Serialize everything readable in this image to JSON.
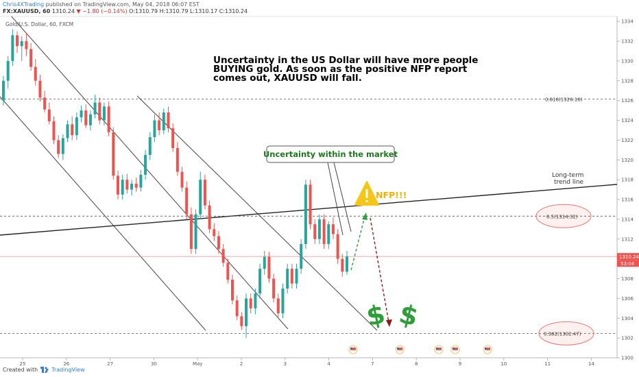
{
  "header": {
    "author": "Chris4XTrading",
    "published": "published on TradingView.com, May 04, 2018 06:07 EST",
    "symbol": "FX:XAUUSD, 60",
    "last": "1310.24",
    "change": "▼ −1.80 (−0.14%)",
    "ohlc": "O:1310.79 H:1310.79 L:1310.17 C:1310.24"
  },
  "footer": {
    "created_with": "Created with",
    "brand": "TradingView"
  },
  "chart_data": {
    "type": "candlestick",
    "title": "Gold/U.S. Dollar, 60, FXCM",
    "ylim": [
      1300,
      1334.5
    ],
    "yticks": [
      1300,
      1302,
      1304,
      1306,
      1308,
      1310,
      1312,
      1314,
      1316,
      1318,
      1320,
      1322,
      1324,
      1326,
      1328,
      1330,
      1332,
      1334
    ],
    "xticks": [
      "25",
      "26",
      "27",
      "30",
      "May",
      "2",
      "3",
      "4",
      "7",
      "8",
      "9",
      "10",
      "11",
      "14"
    ],
    "price_label": "1310.24",
    "countdown_label": "53:04",
    "levels": [
      {
        "label": "0.618(1326.16)",
        "price": 1326.16
      },
      {
        "label": "0.5(1314.32)",
        "price": 1314.32
      },
      {
        "label": "0.382(1302.47)",
        "price": 1302.47
      }
    ],
    "annotations": {
      "main_text": [
        "Uncertainty in the US Dollar will have more people",
        "BUYING gold. As soon as the positive NFP report",
        "comes out, XAUUSD will fall."
      ],
      "callout": "Uncertainty within the market",
      "nfp": "NFP!!!",
      "trend_label": [
        "Long-term",
        "trend line"
      ],
      "dollar_sign": "$"
    },
    "candles": [
      {
        "o": 1326.0,
        "h": 1328.5,
        "l": 1325.5,
        "c": 1328.0
      },
      {
        "o": 1328.0,
        "h": 1330.5,
        "l": 1327.2,
        "c": 1330.0
      },
      {
        "o": 1330.0,
        "h": 1333.2,
        "l": 1329.5,
        "c": 1332.6
      },
      {
        "o": 1332.6,
        "h": 1333.0,
        "l": 1330.8,
        "c": 1331.5
      },
      {
        "o": 1331.5,
        "h": 1332.5,
        "l": 1330.0,
        "c": 1332.0
      },
      {
        "o": 1332.0,
        "h": 1332.8,
        "l": 1330.5,
        "c": 1331.2
      },
      {
        "o": 1331.2,
        "h": 1331.8,
        "l": 1329.0,
        "c": 1329.4
      },
      {
        "o": 1329.4,
        "h": 1330.2,
        "l": 1327.5,
        "c": 1328.0
      },
      {
        "o": 1328.0,
        "h": 1328.6,
        "l": 1325.9,
        "c": 1326.3
      },
      {
        "o": 1326.3,
        "h": 1327.0,
        "l": 1324.8,
        "c": 1325.1
      },
      {
        "o": 1325.1,
        "h": 1325.8,
        "l": 1323.6,
        "c": 1323.9
      },
      {
        "o": 1323.9,
        "h": 1324.4,
        "l": 1321.6,
        "c": 1322.0
      },
      {
        "o": 1322.0,
        "h": 1322.5,
        "l": 1320.2,
        "c": 1320.6
      },
      {
        "o": 1320.6,
        "h": 1322.6,
        "l": 1320.0,
        "c": 1322.2
      },
      {
        "o": 1322.2,
        "h": 1324.0,
        "l": 1321.8,
        "c": 1323.6
      },
      {
        "o": 1323.6,
        "h": 1324.4,
        "l": 1322.0,
        "c": 1322.5
      },
      {
        "o": 1322.5,
        "h": 1324.8,
        "l": 1322.0,
        "c": 1324.3
      },
      {
        "o": 1324.3,
        "h": 1325.5,
        "l": 1323.8,
        "c": 1325.0
      },
      {
        "o": 1325.0,
        "h": 1325.6,
        "l": 1323.2,
        "c": 1323.5
      },
      {
        "o": 1323.5,
        "h": 1325.0,
        "l": 1323.0,
        "c": 1324.6
      },
      {
        "o": 1324.6,
        "h": 1326.6,
        "l": 1324.2,
        "c": 1325.8
      },
      {
        "o": 1325.8,
        "h": 1326.3,
        "l": 1323.6,
        "c": 1324.0
      },
      {
        "o": 1324.0,
        "h": 1325.8,
        "l": 1323.5,
        "c": 1325.4
      },
      {
        "o": 1325.4,
        "h": 1325.9,
        "l": 1322.4,
        "c": 1322.8
      },
      {
        "o": 1322.8,
        "h": 1323.3,
        "l": 1318.0,
        "c": 1318.4
      },
      {
        "o": 1318.4,
        "h": 1318.9,
        "l": 1316.0,
        "c": 1316.5
      },
      {
        "o": 1316.5,
        "h": 1318.5,
        "l": 1316.0,
        "c": 1318.0
      },
      {
        "o": 1318.0,
        "h": 1318.6,
        "l": 1316.6,
        "c": 1317.0
      },
      {
        "o": 1317.0,
        "h": 1318.0,
        "l": 1316.4,
        "c": 1317.6
      },
      {
        "o": 1317.6,
        "h": 1318.2,
        "l": 1316.8,
        "c": 1317.2
      },
      {
        "o": 1317.2,
        "h": 1319.0,
        "l": 1316.8,
        "c": 1318.5
      },
      {
        "o": 1318.5,
        "h": 1321.0,
        "l": 1318.0,
        "c": 1320.5
      },
      {
        "o": 1320.5,
        "h": 1322.8,
        "l": 1320.0,
        "c": 1322.3
      },
      {
        "o": 1322.3,
        "h": 1324.6,
        "l": 1321.8,
        "c": 1324.0
      },
      {
        "o": 1324.0,
        "h": 1324.8,
        "l": 1322.5,
        "c": 1323.0
      },
      {
        "o": 1323.0,
        "h": 1325.2,
        "l": 1322.6,
        "c": 1324.8
      },
      {
        "o": 1324.8,
        "h": 1325.4,
        "l": 1322.8,
        "c": 1323.2
      },
      {
        "o": 1323.2,
        "h": 1323.7,
        "l": 1320.8,
        "c": 1321.2
      },
      {
        "o": 1321.2,
        "h": 1321.8,
        "l": 1318.4,
        "c": 1318.8
      },
      {
        "o": 1318.8,
        "h": 1319.3,
        "l": 1316.8,
        "c": 1317.2
      },
      {
        "o": 1317.2,
        "h": 1317.8,
        "l": 1314.0,
        "c": 1314.5
      },
      {
        "o": 1314.5,
        "h": 1315.2,
        "l": 1310.5,
        "c": 1311.0
      },
      {
        "o": 1311.0,
        "h": 1315.0,
        "l": 1310.5,
        "c": 1314.5
      },
      {
        "o": 1314.5,
        "h": 1318.8,
        "l": 1314.0,
        "c": 1318.0
      },
      {
        "o": 1318.0,
        "h": 1318.5,
        "l": 1315.0,
        "c": 1315.4
      },
      {
        "o": 1315.4,
        "h": 1315.9,
        "l": 1312.6,
        "c": 1313.0
      },
      {
        "o": 1313.0,
        "h": 1313.6,
        "l": 1311.8,
        "c": 1312.3
      },
      {
        "o": 1312.3,
        "h": 1312.8,
        "l": 1310.5,
        "c": 1311.0
      },
      {
        "o": 1311.0,
        "h": 1311.5,
        "l": 1309.2,
        "c": 1309.6
      },
      {
        "o": 1309.6,
        "h": 1310.0,
        "l": 1307.5,
        "c": 1307.9
      },
      {
        "o": 1307.9,
        "h": 1308.4,
        "l": 1305.4,
        "c": 1305.8
      },
      {
        "o": 1305.8,
        "h": 1306.3,
        "l": 1303.8,
        "c": 1304.2
      },
      {
        "o": 1304.2,
        "h": 1304.6,
        "l": 1302.8,
        "c": 1303.2
      },
      {
        "o": 1303.2,
        "h": 1306.5,
        "l": 1302.0,
        "c": 1306.0
      },
      {
        "o": 1306.0,
        "h": 1306.5,
        "l": 1304.5,
        "c": 1305.0
      },
      {
        "o": 1305.0,
        "h": 1307.0,
        "l": 1304.4,
        "c": 1306.5
      },
      {
        "o": 1306.5,
        "h": 1309.5,
        "l": 1306.0,
        "c": 1309.0
      },
      {
        "o": 1309.0,
        "h": 1310.8,
        "l": 1308.4,
        "c": 1310.2
      },
      {
        "o": 1310.2,
        "h": 1310.7,
        "l": 1307.6,
        "c": 1308.0
      },
      {
        "o": 1308.0,
        "h": 1308.5,
        "l": 1305.6,
        "c": 1306.0
      },
      {
        "o": 1306.0,
        "h": 1306.5,
        "l": 1304.0,
        "c": 1304.5
      },
      {
        "o": 1304.5,
        "h": 1307.5,
        "l": 1304.0,
        "c": 1307.0
      },
      {
        "o": 1307.0,
        "h": 1309.5,
        "l": 1306.5,
        "c": 1309.0
      },
      {
        "o": 1309.0,
        "h": 1309.5,
        "l": 1307.0,
        "c": 1307.5
      },
      {
        "o": 1307.5,
        "h": 1309.5,
        "l": 1307.0,
        "c": 1309.0
      },
      {
        "o": 1309.0,
        "h": 1312.0,
        "l": 1308.5,
        "c": 1311.5
      },
      {
        "o": 1311.5,
        "h": 1318.0,
        "l": 1311.0,
        "c": 1317.5
      },
      {
        "o": 1317.5,
        "h": 1318.0,
        "l": 1313.0,
        "c": 1313.5
      },
      {
        "o": 1313.5,
        "h": 1314.0,
        "l": 1311.5,
        "c": 1312.0
      },
      {
        "o": 1312.0,
        "h": 1314.5,
        "l": 1311.5,
        "c": 1314.0
      },
      {
        "o": 1314.0,
        "h": 1314.5,
        "l": 1311.0,
        "c": 1311.5
      },
      {
        "o": 1311.5,
        "h": 1313.8,
        "l": 1311.0,
        "c": 1313.5
      },
      {
        "o": 1313.5,
        "h": 1314.2,
        "l": 1312.0,
        "c": 1312.5
      },
      {
        "o": 1312.5,
        "h": 1313.0,
        "l": 1309.5,
        "c": 1310.0
      },
      {
        "o": 1310.0,
        "h": 1310.5,
        "l": 1308.2,
        "c": 1308.7
      },
      {
        "o": 1308.7,
        "h": 1310.8,
        "l": 1308.4,
        "c": 1310.24
      }
    ]
  }
}
